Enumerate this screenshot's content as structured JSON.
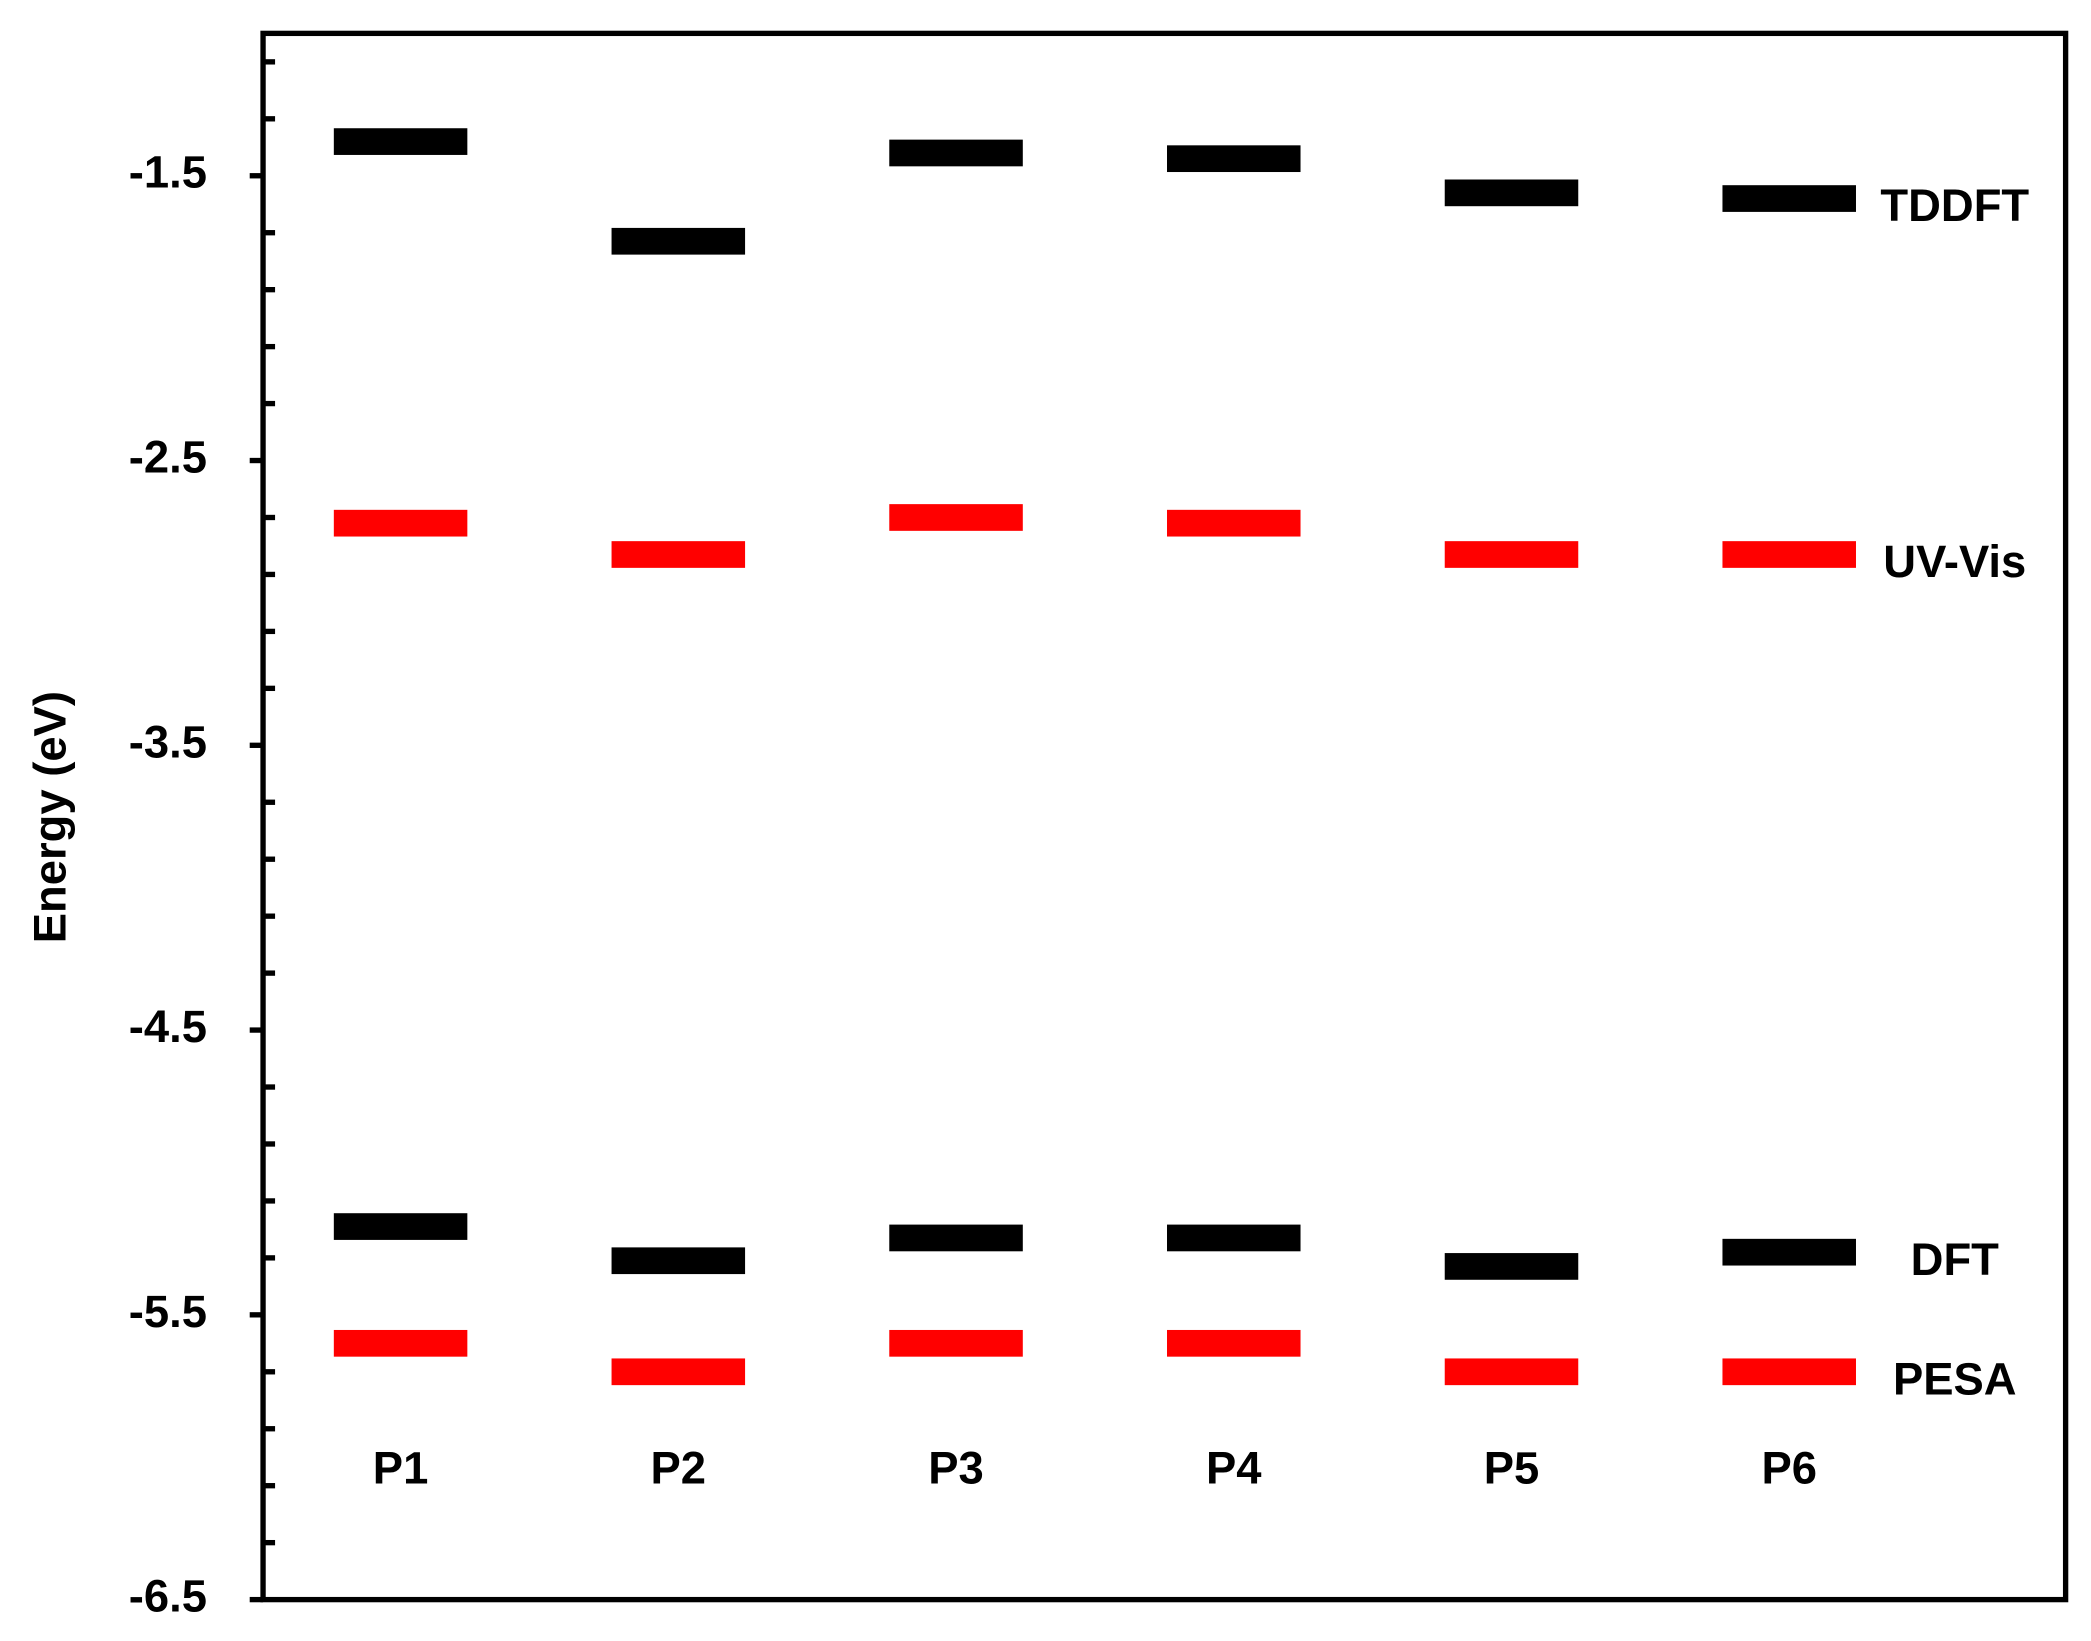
{
  "chart_data": {
    "type": "level",
    "y_label": "Energy (eV)",
    "categories": [
      "P1",
      "P2",
      "P3",
      "P4",
      "P5",
      "P6"
    ],
    "series": [
      {
        "name": "TDDFT",
        "color": "#000000",
        "values": [
          -1.38,
          -1.73,
          -1.42,
          -1.44,
          -1.56,
          -1.58
        ]
      },
      {
        "name": "UV-Vis",
        "color": "#ff0000",
        "values": [
          -2.72,
          -2.83,
          -2.7,
          -2.72,
          -2.83,
          -2.83
        ]
      },
      {
        "name": "DFT",
        "color": "#000000",
        "values": [
          -5.19,
          -5.31,
          -5.23,
          -5.23,
          -5.33,
          -5.28
        ]
      },
      {
        "name": "PESA",
        "color": "#ff0000",
        "values": [
          -5.6,
          -5.7,
          -5.6,
          -5.6,
          -5.7,
          -5.7
        ]
      }
    ],
    "ylim": [
      -6.5,
      -1.0
    ],
    "yticks": [
      -6.5,
      -5.5,
      -4.5,
      -3.5,
      -2.5,
      -1.5
    ],
    "yminorticks": [
      -6.3,
      -6.1,
      -5.9,
      -5.7,
      -5.3,
      -5.1,
      -4.9,
      -4.7,
      -4.3,
      -4.1,
      -3.9,
      -3.7,
      -3.3,
      -3.1,
      -2.9,
      -2.7,
      -2.3,
      -2.1,
      -1.9,
      -1.7,
      -1.3,
      -1.1
    ]
  }
}
